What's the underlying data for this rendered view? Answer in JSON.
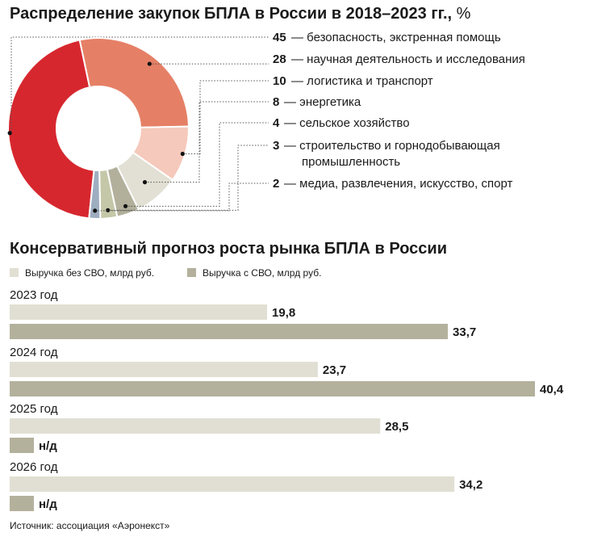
{
  "charts": {
    "pie_title": "Распределение закупок БПЛА в России в 2018–2023 гг.,",
    "pie_unit": "%",
    "bar_title": "Консервативный прогноз роста рынка БПЛА в России",
    "source": "Источник: ассоциация «Аэронекст»"
  },
  "colors": {
    "pie": [
      "#d7272e",
      "#e58066",
      "#f5c9bb",
      "#e2e0d4",
      "#b2b09b",
      "#c4c8a8",
      "#9eaec0"
    ],
    "bar_without": "#e1dfd3",
    "bar_with": "#b3b19c",
    "leader": "#555555"
  },
  "chart_data": [
    {
      "type": "pie",
      "title": "Распределение закупок БПЛА в России в 2018–2023 гг., %",
      "donut": true,
      "slices": [
        {
          "value": 45,
          "value_label": "45",
          "label": "безопасность, экстренная помощь"
        },
        {
          "value": 28,
          "value_label": "28",
          "label": "научная деятельность и исследования"
        },
        {
          "value": 10,
          "value_label": "10",
          "label": "логистика и транспорт"
        },
        {
          "value": 8,
          "value_label": "8",
          "label": "энергетика"
        },
        {
          "value": 4,
          "value_label": "4",
          "label": "сельское хозяйство"
        },
        {
          "value": 3,
          "value_label": "3",
          "label": "строительство и горнодобывающая промышленность",
          "label_lines": [
            "строительство и горнодобывающая",
            "промышленность"
          ]
        },
        {
          "value": 2,
          "value_label": "2",
          "label": "медиа, развлечения, искусство, спорт"
        }
      ]
    },
    {
      "type": "bar",
      "orientation": "horizontal",
      "title": "Консервативный прогноз роста рынка БПЛА в России",
      "categories": [
        "2023 год",
        "2024 год",
        "2025 год",
        "2026 год"
      ],
      "series": [
        {
          "name": "Выручка без СВО, млрд руб.",
          "values": [
            19.8,
            23.7,
            28.5,
            34.2
          ],
          "labels": [
            "19,8",
            "23,7",
            "28,5",
            "34,2"
          ]
        },
        {
          "name": "Выручка с СВО, млрд руб.",
          "values": [
            33.7,
            40.4,
            null,
            null
          ],
          "labels": [
            "33,7",
            "40,4",
            "н/д",
            "н/д"
          ]
        }
      ],
      "xlim": [
        0,
        40.4
      ]
    }
  ]
}
